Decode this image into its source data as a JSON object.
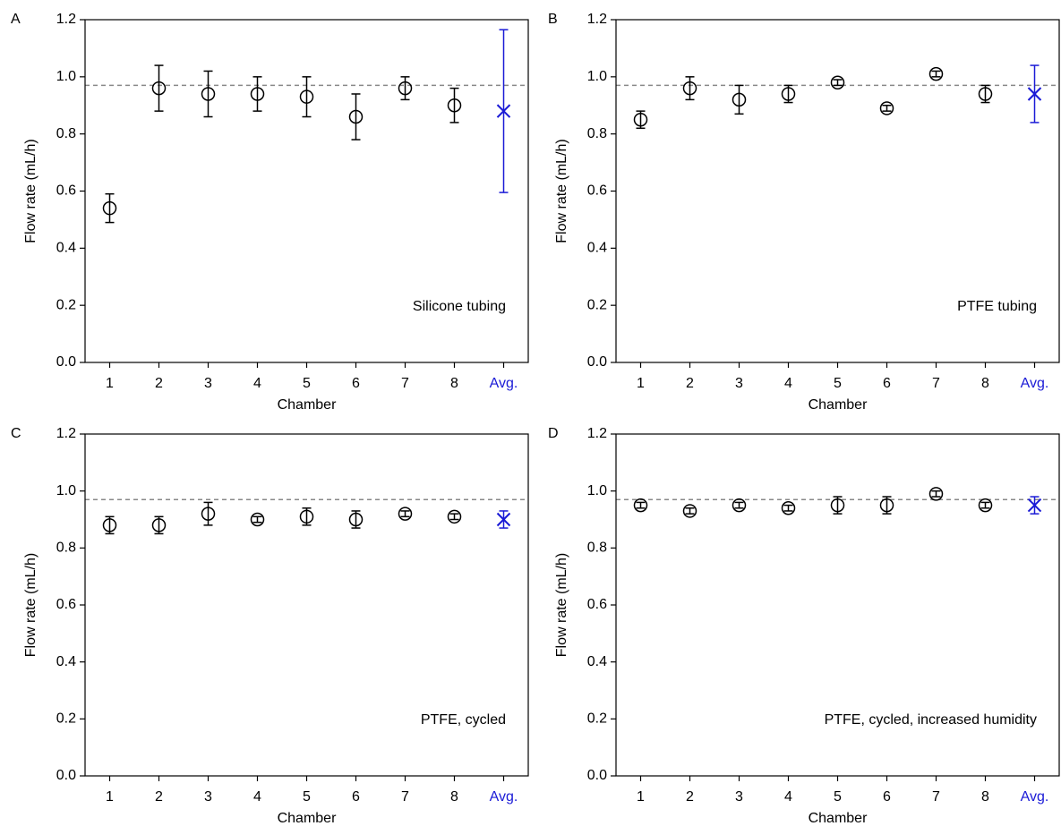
{
  "chart_data": [
    {
      "type": "errorbar",
      "label": "A",
      "annotation": "Silicone tubing",
      "x_label": "Chamber",
      "y_label": "Flow rate (mL/h)",
      "categories": [
        "1",
        "2",
        "3",
        "4",
        "5",
        "6",
        "7",
        "8",
        "Avg."
      ],
      "values": [
        0.54,
        0.96,
        0.94,
        0.94,
        0.93,
        0.86,
        0.96,
        0.9,
        0.88
      ],
      "errors": [
        0.05,
        0.08,
        0.08,
        0.06,
        0.07,
        0.08,
        0.04,
        0.06,
        0.285
      ],
      "point_colors": [
        "#000000",
        "#000000",
        "#000000",
        "#000000",
        "#000000",
        "#000000",
        "#000000",
        "#000000",
        "#1a1ad6"
      ],
      "markers": [
        "circle",
        "circle",
        "circle",
        "circle",
        "circle",
        "circle",
        "circle",
        "circle",
        "x"
      ],
      "reference_line": 0.97,
      "ylim": [
        0,
        1.2
      ],
      "yticks": [
        {
          "value": 0,
          "label": "0.0"
        },
        0.2,
        0.4,
        0.6,
        0.8,
        {
          "value": 1,
          "label": "1.0"
        },
        1.2
      ]
    },
    {
      "type": "errorbar",
      "label": "B",
      "annotation": "PTFE tubing",
      "x_label": "Chamber",
      "y_label": "Flow rate (mL/h)",
      "categories": [
        "1",
        "2",
        "3",
        "4",
        "5",
        "6",
        "7",
        "8",
        "Avg."
      ],
      "values": [
        0.85,
        0.96,
        0.92,
        0.94,
        0.98,
        0.89,
        1.01,
        0.94,
        0.94
      ],
      "errors": [
        0.03,
        0.04,
        0.05,
        0.03,
        0.01,
        0.01,
        0.01,
        0.03,
        0.1
      ],
      "point_colors": [
        "#000000",
        "#000000",
        "#000000",
        "#000000",
        "#000000",
        "#000000",
        "#000000",
        "#000000",
        "#1a1ad6"
      ],
      "markers": [
        "circle",
        "circle",
        "circle",
        "circle",
        "circle",
        "circle",
        "circle",
        "circle",
        "x"
      ],
      "reference_line": 0.97,
      "ylim": [
        0,
        1.2
      ],
      "yticks": [
        {
          "value": 0,
          "label": "0.0"
        },
        0.2,
        0.4,
        0.6,
        0.8,
        {
          "value": 1,
          "label": "1.0"
        },
        1.2
      ]
    },
    {
      "type": "errorbar",
      "label": "C",
      "annotation": "PTFE, cycled",
      "x_label": "Chamber",
      "y_label": "Flow rate (mL/h)",
      "categories": [
        "1",
        "2",
        "3",
        "4",
        "5",
        "6",
        "7",
        "8",
        "Avg."
      ],
      "values": [
        0.88,
        0.88,
        0.92,
        0.9,
        0.91,
        0.9,
        0.92,
        0.91,
        0.9
      ],
      "errors": [
        0.03,
        0.03,
        0.04,
        0.01,
        0.03,
        0.03,
        0.01,
        0.01,
        0.03
      ],
      "point_colors": [
        "#000000",
        "#000000",
        "#000000",
        "#000000",
        "#000000",
        "#000000",
        "#000000",
        "#000000",
        "#1a1ad6"
      ],
      "markers": [
        "circle",
        "circle",
        "circle",
        "circle",
        "circle",
        "circle",
        "circle",
        "circle",
        "x"
      ],
      "reference_line": 0.97,
      "ylim": [
        0,
        1.2
      ],
      "yticks": [
        {
          "value": 0,
          "label": "0.0"
        },
        0.2,
        0.4,
        0.6,
        0.8,
        {
          "value": 1,
          "label": "1.0"
        },
        1.2
      ]
    },
    {
      "type": "errorbar",
      "label": "D",
      "annotation": "PTFE, cycled, increased humidity",
      "x_label": "Chamber",
      "y_label": "Flow rate (mL/h)",
      "categories": [
        "1",
        "2",
        "3",
        "4",
        "5",
        "6",
        "7",
        "8",
        "Avg."
      ],
      "values": [
        0.95,
        0.93,
        0.95,
        0.94,
        0.95,
        0.95,
        0.99,
        0.95,
        0.95
      ],
      "errors": [
        0.01,
        0.01,
        0.01,
        0.01,
        0.03,
        0.03,
        0.01,
        0.01,
        0.03
      ],
      "point_colors": [
        "#000000",
        "#000000",
        "#000000",
        "#000000",
        "#000000",
        "#000000",
        "#000000",
        "#000000",
        "#1a1ad6"
      ],
      "markers": [
        "circle",
        "circle",
        "circle",
        "circle",
        "circle",
        "circle",
        "circle",
        "circle",
        "x"
      ],
      "reference_line": 0.97,
      "ylim": [
        0,
        1.2
      ],
      "yticks": [
        {
          "value": 0,
          "label": "0.0"
        },
        0.2,
        0.4,
        0.6,
        0.8,
        {
          "value": 1,
          "label": "1.0"
        },
        1.2
      ]
    }
  ]
}
